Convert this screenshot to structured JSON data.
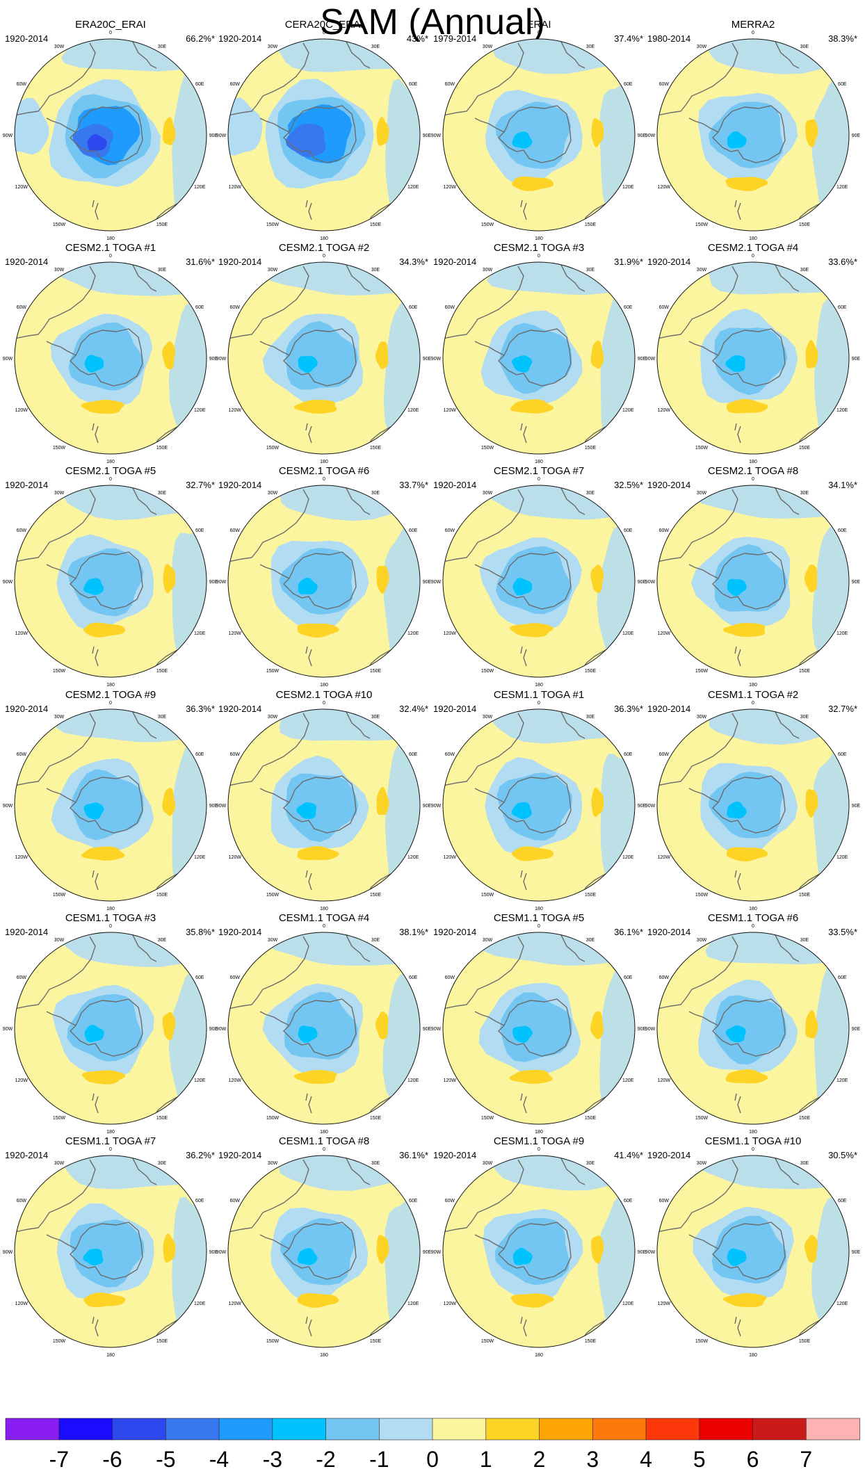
{
  "title": "SAM (Annual)",
  "panel_labels": {
    "longitudes": [
      "0",
      "30E",
      "60E",
      "90E",
      "120E",
      "150E",
      "180",
      "150W",
      "120W",
      "90W",
      "60W",
      "30W"
    ]
  },
  "palette": {
    "map_background": "#fbf5a0",
    "coast": "#6b6b6b",
    "outline": "#111111"
  },
  "panels": [
    {
      "name": "ERA20C_ERAI",
      "period": "1920-2014",
      "variance": "66.2%*"
    },
    {
      "name": "CERA20C_ERAI",
      "period": "1920-2014",
      "variance": "43%*"
    },
    {
      "name": "ERAI",
      "period": "1979-2014",
      "variance": "37.4%*"
    },
    {
      "name": "MERRA2",
      "period": "1980-2014",
      "variance": "38.3%*"
    },
    {
      "name": "CESM2.1 TOGA #1",
      "period": "1920-2014",
      "variance": "31.6%*"
    },
    {
      "name": "CESM2.1 TOGA #2",
      "period": "1920-2014",
      "variance": "34.3%*"
    },
    {
      "name": "CESM2.1 TOGA #3",
      "period": "1920-2014",
      "variance": "31.9%*"
    },
    {
      "name": "CESM2.1 TOGA #4",
      "period": "1920-2014",
      "variance": "33.6%*"
    },
    {
      "name": "CESM2.1 TOGA #5",
      "period": "1920-2014",
      "variance": "32.7%*"
    },
    {
      "name": "CESM2.1 TOGA #6",
      "period": "1920-2014",
      "variance": "33.7%*"
    },
    {
      "name": "CESM2.1 TOGA #7",
      "period": "1920-2014",
      "variance": "32.5%*"
    },
    {
      "name": "CESM2.1 TOGA #8",
      "period": "1920-2014",
      "variance": "34.1%*"
    },
    {
      "name": "CESM2.1 TOGA #9",
      "period": "1920-2014",
      "variance": "36.3%*"
    },
    {
      "name": "CESM2.1 TOGA #10",
      "period": "1920-2014",
      "variance": "32.4%*"
    },
    {
      "name": "CESM1.1 TOGA #1",
      "period": "1920-2014",
      "variance": "36.3%*"
    },
    {
      "name": "CESM1.1 TOGA #2",
      "period": "1920-2014",
      "variance": "32.7%*"
    },
    {
      "name": "CESM1.1 TOGA #3",
      "period": "1920-2014",
      "variance": "35.8%*"
    },
    {
      "name": "CESM1.1 TOGA #4",
      "period": "1920-2014",
      "variance": "38.1%*"
    },
    {
      "name": "CESM1.1 TOGA #5",
      "period": "1920-2014",
      "variance": "36.1%*"
    },
    {
      "name": "CESM1.1 TOGA #6",
      "period": "1920-2014",
      "variance": "33.5%*"
    },
    {
      "name": "CESM1.1 TOGA #7",
      "period": "1920-2014",
      "variance": "36.2%*"
    },
    {
      "name": "CESM1.1 TOGA #8",
      "period": "1920-2014",
      "variance": "36.1%*"
    },
    {
      "name": "CESM1.1 TOGA #9",
      "period": "1920-2014",
      "variance": "41.4%*"
    },
    {
      "name": "CESM1.1 TOGA #10",
      "period": "1920-2014",
      "variance": "30.5%*"
    }
  ],
  "colorbar": {
    "labels": [
      "-7",
      "-6",
      "-5",
      "-4",
      "-3",
      "-2",
      "-1",
      "0",
      "1",
      "2",
      "3",
      "4",
      "5",
      "6",
      "7"
    ],
    "colors": [
      "#8a1ef0",
      "#1a0dff",
      "#2d48ec",
      "#3878ee",
      "#1e9bfd",
      "#00c3fd",
      "#74c6f2",
      "#b2dcf2",
      "#fbf5a0",
      "#fdd326",
      "#fda504",
      "#fd790b",
      "#fd380b",
      "#ea0000",
      "#cb1a1a",
      "#fdb3b3"
    ]
  }
}
